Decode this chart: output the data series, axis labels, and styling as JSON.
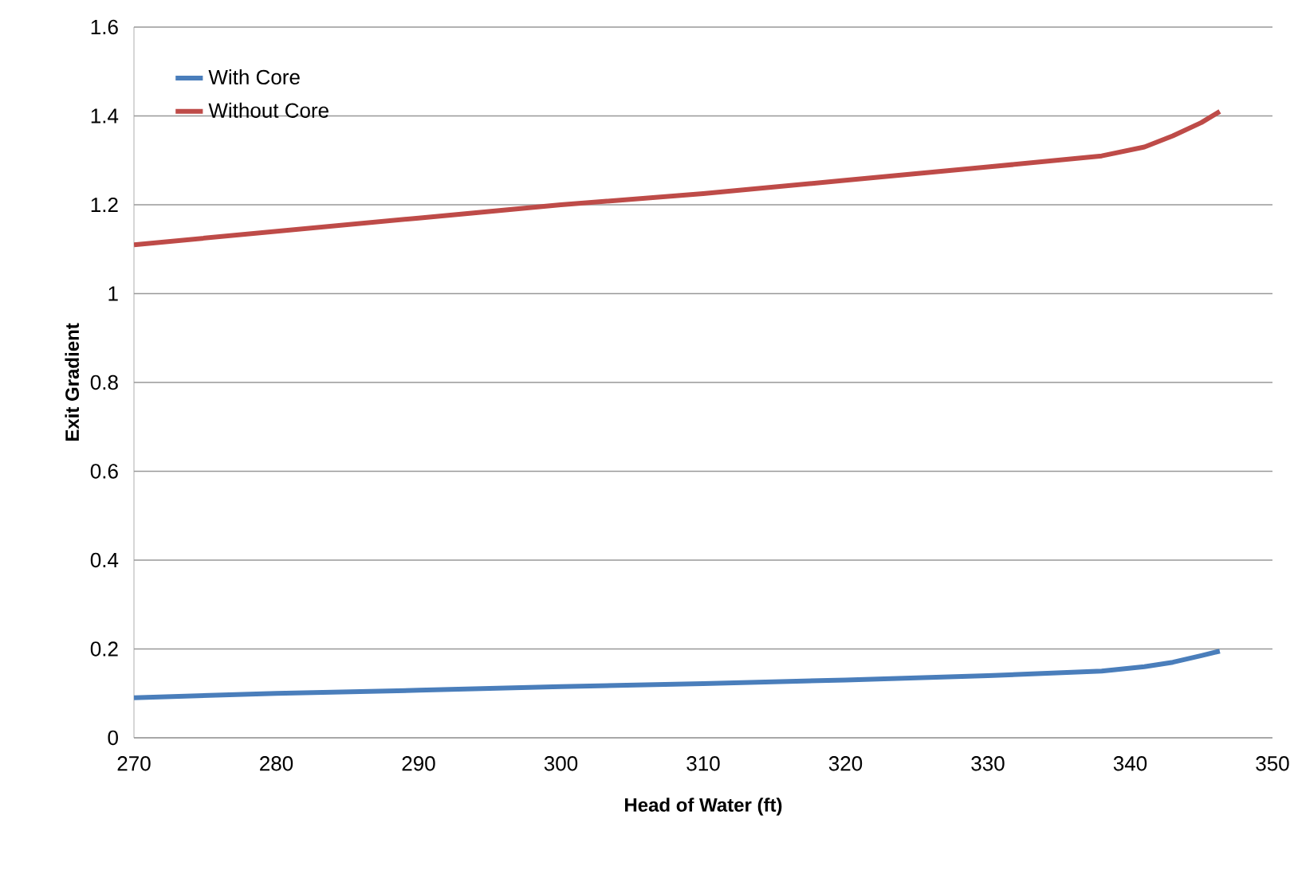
{
  "chart_data": {
    "type": "line",
    "xlabel": "Head of Water (ft)",
    "ylabel": "Exit Gradient",
    "xlim": [
      270,
      350
    ],
    "xticks": [
      270,
      280,
      290,
      300,
      310,
      320,
      330,
      340,
      350
    ],
    "ylim": [
      0,
      1.6
    ],
    "yticks": [
      0,
      0.2,
      0.4,
      0.6,
      0.8,
      1,
      1.2,
      1.4,
      1.6
    ],
    "grid": "y",
    "legend": "top left",
    "marker": "none",
    "line_style": "solid",
    "series": [
      {
        "name": "With Core",
        "color": "#4a7ebb",
        "x": [
          270,
          280,
          290,
          300,
          310,
          320,
          330,
          338,
          341,
          343,
          345,
          346.3
        ],
        "values": [
          0.09,
          0.1,
          0.107,
          0.115,
          0.122,
          0.13,
          0.14,
          0.15,
          0.16,
          0.17,
          0.185,
          0.195
        ]
      },
      {
        "name": "Without Core",
        "color": "#be4b48",
        "x": [
          270,
          280,
          290,
          300,
          310,
          320,
          330,
          338,
          341,
          343,
          345,
          346.3
        ],
        "values": [
          1.11,
          1.14,
          1.17,
          1.2,
          1.225,
          1.255,
          1.285,
          1.31,
          1.33,
          1.355,
          1.385,
          1.41
        ]
      }
    ]
  }
}
